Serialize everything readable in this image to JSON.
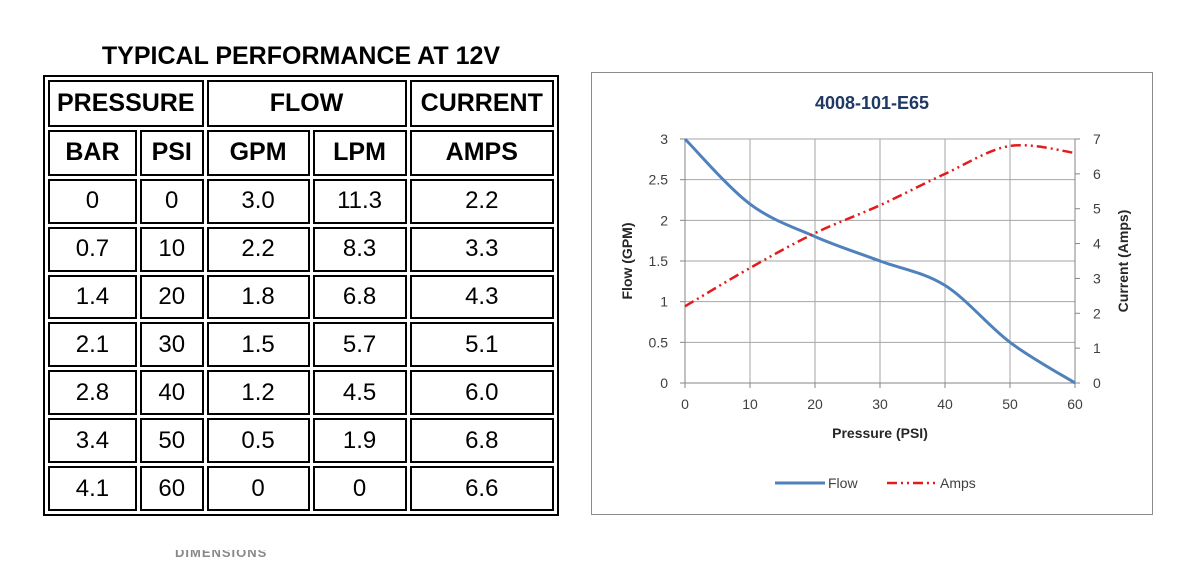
{
  "table": {
    "title": "TYPICAL PERFORMANCE AT 12V",
    "group_headers": {
      "pressure": "PRESSURE",
      "flow": "FLOW",
      "current": "CURRENT"
    },
    "unit_headers": {
      "bar": "BAR",
      "psi": "PSI",
      "gpm": "GPM",
      "lpm": "LPM",
      "amps": "AMPS"
    },
    "rows": [
      [
        "0",
        "0",
        "3.0",
        "11.3",
        "2.2"
      ],
      [
        "0.7",
        "10",
        "2.2",
        "8.3",
        "3.3"
      ],
      [
        "1.4",
        "20",
        "1.8",
        "6.8",
        "4.3"
      ],
      [
        "2.1",
        "30",
        "1.5",
        "5.7",
        "5.1"
      ],
      [
        "2.8",
        "40",
        "1.2",
        "4.5",
        "6.0"
      ],
      [
        "3.4",
        "50",
        "0.5",
        "1.9",
        "6.8"
      ],
      [
        "4.1",
        "60",
        "0",
        "0",
        "6.6"
      ]
    ]
  },
  "chart_data": {
    "type": "line",
    "title": "4008-101-E65",
    "xlabel": "Pressure (PSI)",
    "ylabel": "Flow (GPM)",
    "y2label": "Current (Amps)",
    "xlim": [
      0,
      60
    ],
    "ylim": [
      0,
      3
    ],
    "y2lim": [
      0,
      7
    ],
    "x_ticks": [
      "0",
      "10",
      "20",
      "30",
      "40",
      "50",
      "60"
    ],
    "y_ticks": [
      "0",
      "0.5",
      "1",
      "1.5",
      "2",
      "2.5",
      "3"
    ],
    "y2_ticks": [
      "0",
      "1",
      "2",
      "3",
      "4",
      "5",
      "6",
      "7"
    ],
    "grid": true,
    "legend": "bottom",
    "series": [
      {
        "name": "Flow",
        "axis": "left",
        "color": "#4f81bd",
        "style": "solid",
        "x": [
          0,
          10,
          20,
          30,
          40,
          50,
          60
        ],
        "values": [
          3.0,
          2.2,
          1.8,
          1.5,
          1.2,
          0.5,
          0
        ]
      },
      {
        "name": "Amps",
        "axis": "right",
        "color": "#e41a1c",
        "style": "dash-dot",
        "x": [
          0,
          10,
          20,
          30,
          40,
          50,
          60
        ],
        "values": [
          2.2,
          3.3,
          4.3,
          5.1,
          6.0,
          6.8,
          6.6
        ]
      }
    ]
  },
  "footer_fragment": "DIMENSIONS"
}
